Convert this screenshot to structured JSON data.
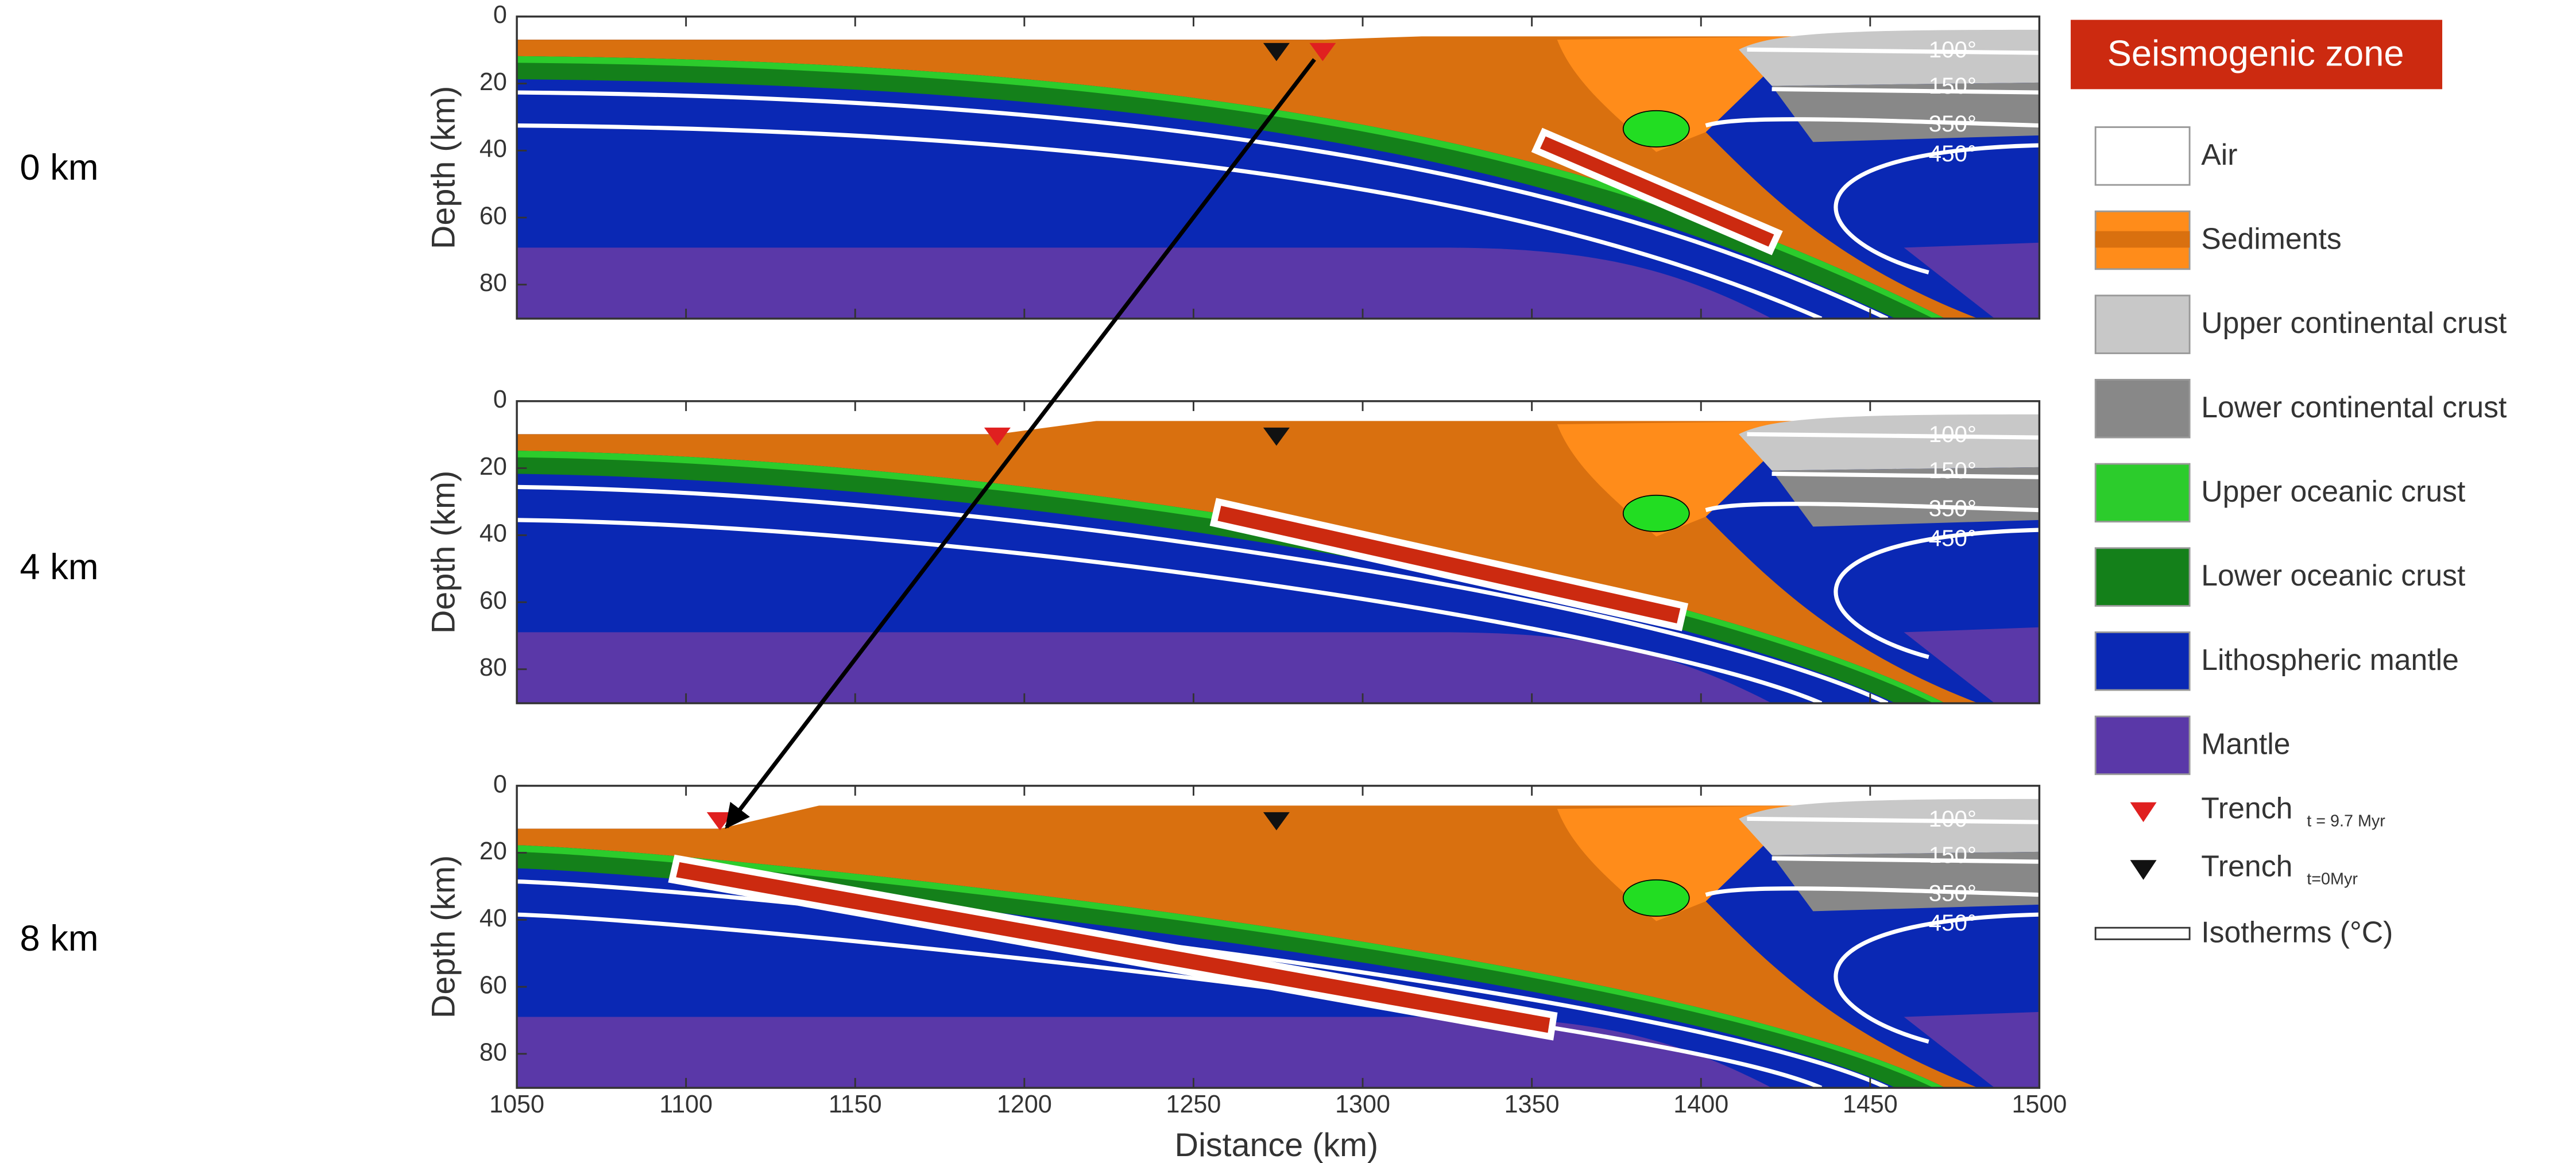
{
  "panels": [
    {
      "label": "0 km",
      "isotherms": [
        "100°",
        "150°",
        "350°",
        "450°"
      ]
    },
    {
      "label": "4 km",
      "isotherms": [
        "100°",
        "150°",
        "350°",
        "450°"
      ]
    },
    {
      "label": "8 km",
      "isotherms": [
        "100°",
        "150°",
        "350°",
        "450°"
      ]
    }
  ],
  "y_axis": {
    "label": "Depth (km)",
    "ticks": [
      0,
      20,
      40,
      60,
      80
    ]
  },
  "x_axis": {
    "label": "Distance (km)",
    "ticks": [
      1050,
      1100,
      1150,
      1200,
      1250,
      1300,
      1350,
      1400,
      1450,
      1500
    ]
  },
  "legend": {
    "title": "Seismogenic zone",
    "items": [
      {
        "label": "Air"
      },
      {
        "label": "Sediments"
      },
      {
        "label": "Upper continental crust"
      },
      {
        "label": "Lower continental crust"
      },
      {
        "label": "Upper oceanic crust"
      },
      {
        "label": "Lower oceanic crust"
      },
      {
        "label": "Lithospheric mantle"
      },
      {
        "label": "Mantle"
      }
    ],
    "trench_current": {
      "label": "Trench",
      "subscript": "t = 9.7 Myr"
    },
    "trench_initial": {
      "label": "Trench",
      "subscript": "t=0Myr"
    },
    "isotherms": {
      "label": "Isotherms (°C)"
    }
  }
}
